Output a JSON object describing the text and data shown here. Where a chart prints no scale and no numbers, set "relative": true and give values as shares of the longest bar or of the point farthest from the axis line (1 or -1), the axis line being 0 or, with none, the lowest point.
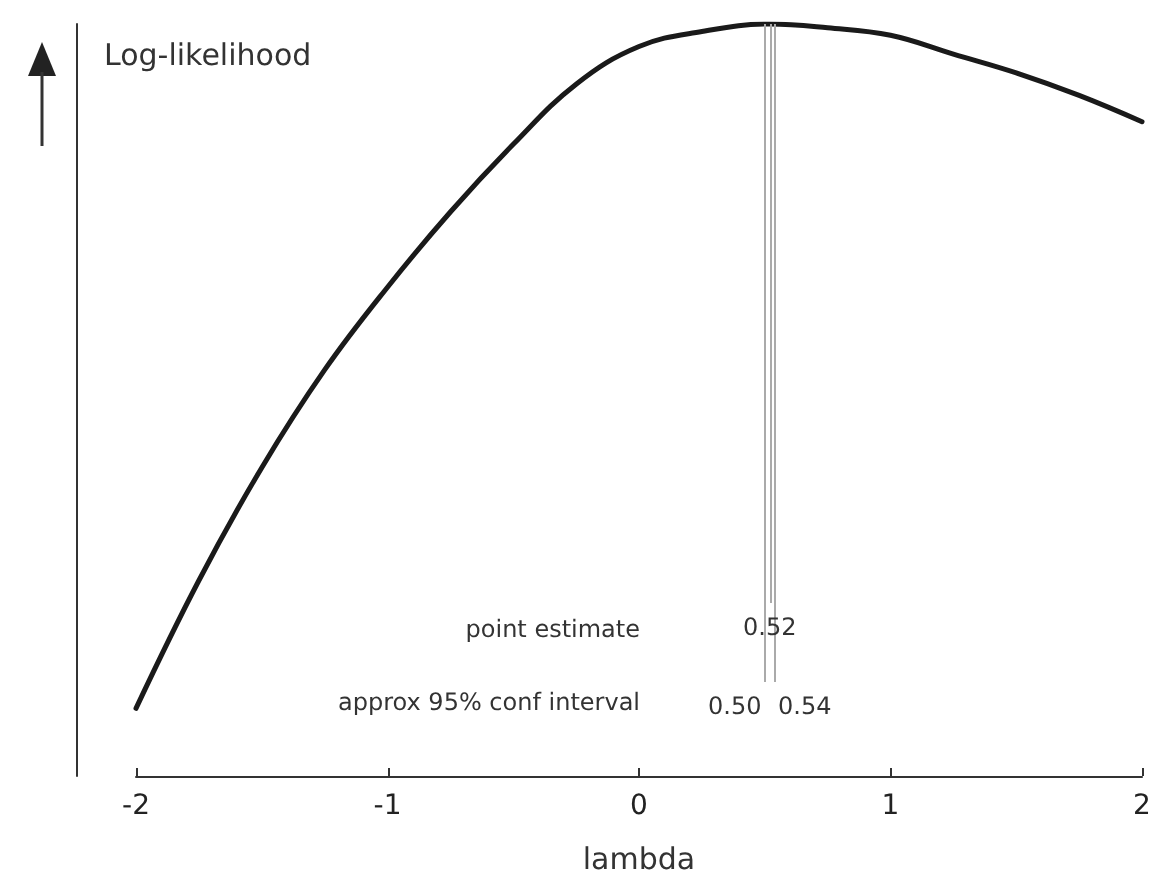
{
  "chart_data": {
    "type": "line",
    "relative": true,
    "xlabel": "lambda",
    "ylabel": "Log-likelihood",
    "x": [
      -2,
      -1.75,
      -1.5,
      -1.25,
      -1,
      -0.75,
      -0.5,
      -0.25,
      0,
      0.25,
      0.52,
      0.75,
      1,
      1.25,
      1.5,
      1.75,
      2
    ],
    "series": [
      {
        "color": "#1a1a1a",
        "values": [
          0.09,
          0.26,
          0.41,
          0.54,
          0.65,
          0.75,
          0.84,
          0.92,
          0.97,
          0.99,
          1.0,
          0.995,
          0.985,
          0.96,
          0.935,
          0.905,
          0.87
        ]
      }
    ],
    "xlim": [
      -2,
      2
    ],
    "xticks": [
      -2,
      -1,
      0,
      1,
      2
    ],
    "ref_lines": [
      {
        "axis": "x",
        "value": 0.52,
        "label": "0.52",
        "color": "#aaaaaa"
      },
      {
        "axis": "x",
        "value": 0.5,
        "label": "0.50",
        "color": "#aaaaaa"
      },
      {
        "axis": "x",
        "value": 0.54,
        "label": "0.54",
        "color": "#aaaaaa"
      }
    ],
    "annotations": [
      "point estimate",
      "approx 95% conf interval"
    ],
    "grid": false,
    "marker": "none",
    "line_style": "solid"
  }
}
